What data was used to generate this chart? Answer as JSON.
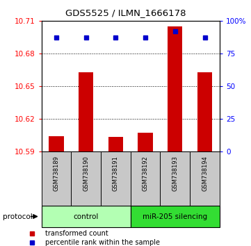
{
  "title": "GDS5525 / ILMN_1666178",
  "samples": [
    "GSM738189",
    "GSM738190",
    "GSM738191",
    "GSM738192",
    "GSM738193",
    "GSM738194"
  ],
  "red_values": [
    10.604,
    10.663,
    10.603,
    10.607,
    10.705,
    10.663
  ],
  "blue_values": [
    87,
    87,
    87,
    87,
    92,
    87
  ],
  "ylim_left": [
    10.59,
    10.71
  ],
  "ylim_right": [
    0,
    100
  ],
  "yticks_left": [
    10.59,
    10.62,
    10.65,
    10.68,
    10.71
  ],
  "yticks_right": [
    0,
    25,
    50,
    75,
    100
  ],
  "ytick_labels_left": [
    "10.59",
    "10.62",
    "10.65",
    "10.68",
    "10.71"
  ],
  "ytick_labels_right": [
    "0",
    "25",
    "50",
    "75",
    "100%"
  ],
  "groups": [
    {
      "label": "control",
      "indices": [
        0,
        1,
        2
      ],
      "color": "#b3ffb3"
    },
    {
      "label": "miR-205 silencing",
      "indices": [
        3,
        4,
        5
      ],
      "color": "#33dd33"
    }
  ],
  "bar_color": "#CC0000",
  "dot_color": "#0000CC",
  "bar_width": 0.5,
  "sample_bg_color": "#C8C8C8",
  "protocol_label": "protocol",
  "legend_red": "transformed count",
  "legend_blue": "percentile rank within the sample"
}
